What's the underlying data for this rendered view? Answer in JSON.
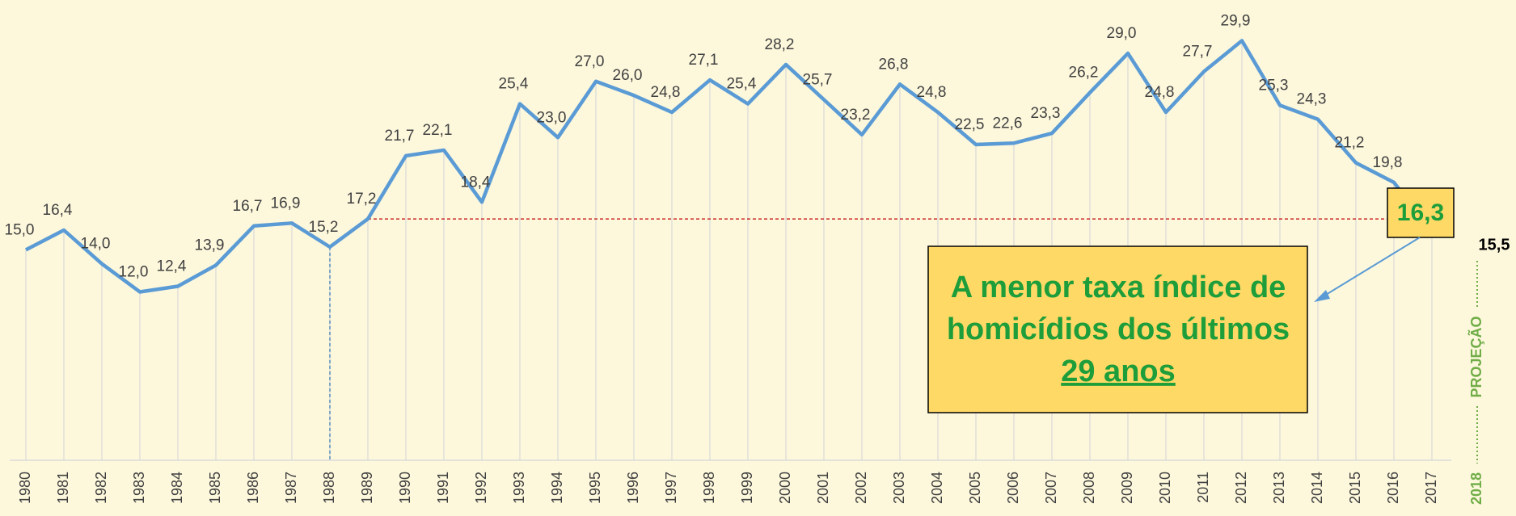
{
  "chart_data": {
    "type": "line",
    "categories": [
      "1980",
      "1981",
      "1982",
      "1983",
      "1984",
      "1985",
      "1986",
      "1987",
      "1988",
      "1989",
      "1990",
      "1991",
      "1992",
      "1993",
      "1994",
      "1995",
      "1996",
      "1997",
      "1998",
      "1999",
      "2000",
      "2001",
      "2002",
      "2003",
      "2004",
      "2005",
      "2006",
      "2007",
      "2008",
      "2009",
      "2010",
      "2011",
      "2012",
      "2013",
      "2014",
      "2015",
      "2016",
      "2017"
    ],
    "series": [
      {
        "color": "#5b9bd5",
        "values": [
          15.0,
          16.4,
          14.0,
          12.0,
          12.4,
          13.9,
          16.7,
          16.9,
          15.2,
          17.2,
          21.7,
          22.1,
          18.4,
          25.4,
          23.0,
          27.0,
          26.0,
          24.8,
          27.1,
          25.4,
          28.2,
          25.7,
          23.2,
          26.8,
          24.8,
          22.5,
          22.6,
          23.3,
          26.2,
          29.0,
          24.8,
          27.7,
          29.9,
          25.3,
          24.3,
          21.2,
          19.8,
          16.3
        ],
        "value_labels": [
          "15,0",
          "16,4",
          "14,0",
          "12,0",
          "12,4",
          "13,9",
          "16,7",
          "16,9",
          "15,2",
          "17,2",
          "21,7",
          "22,1",
          "18,4",
          "25,4",
          "23,0",
          "27,0",
          "26,0",
          "24,8",
          "27,1",
          "25,4",
          "28,2",
          "25,7",
          "23,2",
          "26,8",
          "24,8",
          "22,5",
          "22,6",
          "23,3",
          "26,2",
          "29,0",
          "24,8",
          "27,7",
          "29,9",
          "25,3",
          "24,3",
          "21,2",
          "19,8",
          "16,3"
        ]
      }
    ],
    "ylim": [
      0,
      32.8
    ],
    "annotation": {
      "lines": [
        "A menor taxa índice de",
        "homicídios dos últimos",
        "29 anos"
      ]
    },
    "projection": {
      "label": "PROJEÇÃO",
      "year": "2018",
      "value": 15.5,
      "value_label": "15,5"
    }
  }
}
